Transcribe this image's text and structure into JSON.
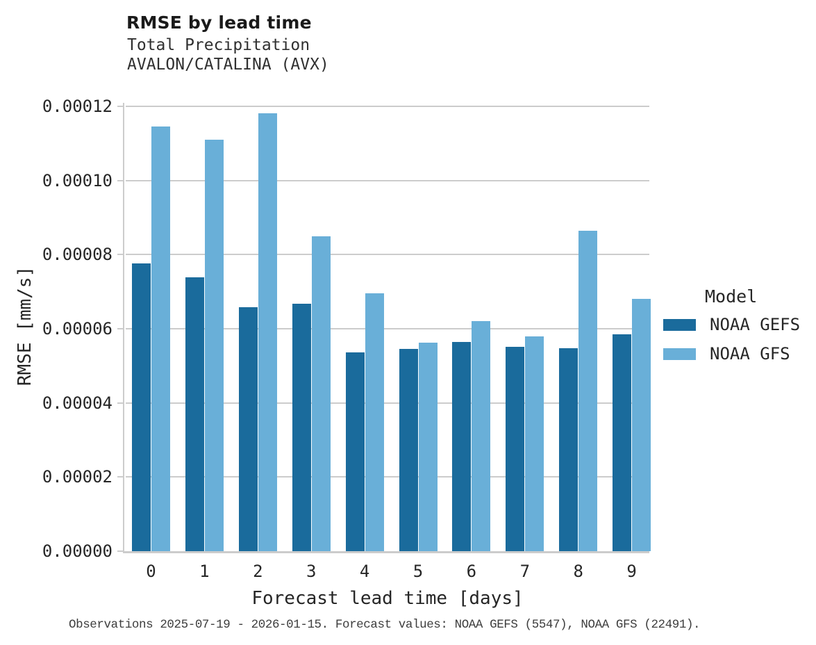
{
  "header": {
    "title": "RMSE by lead time",
    "subtitle_line1": "Total Precipitation",
    "subtitle_line2": "AVALON/CATALINA (AVX)"
  },
  "chart_data": {
    "type": "bar",
    "title": "RMSE by lead time",
    "subtitle": [
      "Total Precipitation",
      "AVALON/CATALINA (AVX)"
    ],
    "xlabel": "Forecast lead time [days]",
    "ylabel": "RMSE [mm/s]",
    "categories": [
      "0",
      "1",
      "2",
      "3",
      "4",
      "5",
      "6",
      "7",
      "8",
      "9"
    ],
    "series": [
      {
        "name": "NOAA GEFS",
        "color": "#1a6b9c",
        "values": [
          7.77e-05,
          7.39e-05,
          6.58e-05,
          6.68e-05,
          5.37e-05,
          5.45e-05,
          5.64e-05,
          5.52e-05,
          5.48e-05,
          5.85e-05
        ]
      },
      {
        "name": "NOAA GFS",
        "color": "#69afd8",
        "values": [
          0.0001145,
          0.000111,
          0.0001181,
          8.49e-05,
          6.96e-05,
          5.62e-05,
          6.21e-05,
          5.8e-05,
          8.65e-05,
          6.8e-05
        ]
      }
    ],
    "ylim": [
      0,
      0.000121
    ],
    "yticks": [
      0,
      2e-05,
      4e-05,
      6e-05,
      8e-05,
      0.0001,
      0.00012
    ],
    "ytick_labels": [
      "0.00000",
      "0.00002",
      "0.00004",
      "0.00006",
      "0.00008",
      "0.00010",
      "0.00012"
    ],
    "grid": "horizontal-only",
    "legend_position": "center-right"
  },
  "legend": {
    "title": "Model",
    "items": [
      {
        "label": "NOAA GEFS",
        "color": "#1a6b9c"
      },
      {
        "label": "NOAA GFS",
        "color": "#69afd8"
      }
    ]
  },
  "footer": {
    "note": "Observations 2025-07-19 - 2026-01-15. Forecast values: NOAA GEFS (5547), NOAA GFS (22491)."
  },
  "colors": {
    "background": "#ffffff",
    "gridline": "#cccccc",
    "axis_spine": "#cccccc",
    "text": "#262626",
    "footer_text": "#3d3d3d"
  }
}
